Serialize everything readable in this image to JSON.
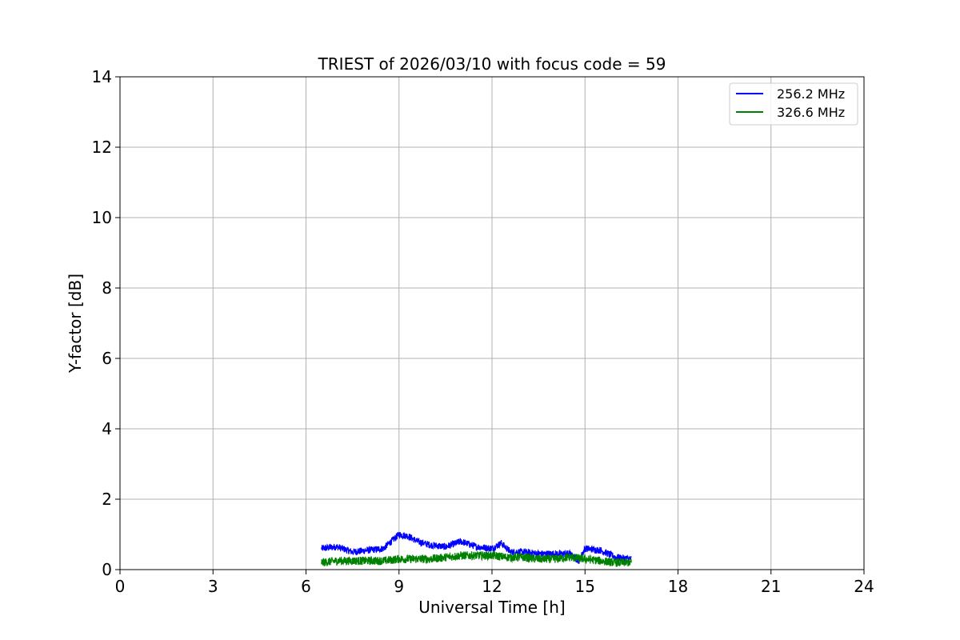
{
  "chart_data": {
    "type": "line",
    "title": "TRIEST of 2026/03/10 with focus code = 59",
    "xlabel": "Universal Time [h]",
    "ylabel": "Y-factor [dB]",
    "xlim": [
      0,
      24
    ],
    "ylim": [
      0,
      14
    ],
    "xticks": [
      0,
      3,
      6,
      9,
      12,
      15,
      18,
      21,
      24
    ],
    "yticks": [
      0,
      2,
      4,
      6,
      8,
      10,
      12,
      14
    ],
    "grid": true,
    "legend_position": "top-right",
    "series": [
      {
        "name": "256.2 MHz",
        "color": "#0000ff",
        "noise_band": 0.1,
        "x": [
          6.5,
          7.0,
          7.5,
          8.0,
          8.5,
          9.0,
          9.3,
          9.6,
          10.0,
          10.5,
          11.0,
          11.5,
          12.0,
          12.3,
          12.6,
          13.0,
          13.5,
          14.0,
          14.5,
          14.8,
          15.0,
          15.5,
          16.0,
          16.5
        ],
        "y": [
          0.6,
          0.65,
          0.5,
          0.55,
          0.6,
          1.0,
          0.95,
          0.8,
          0.7,
          0.65,
          0.8,
          0.65,
          0.6,
          0.75,
          0.5,
          0.5,
          0.45,
          0.45,
          0.45,
          0.25,
          0.6,
          0.55,
          0.35,
          0.3
        ]
      },
      {
        "name": "326.6 MHz",
        "color": "#008000",
        "noise_band": 0.12,
        "x": [
          6.5,
          7.0,
          7.5,
          8.0,
          8.5,
          9.0,
          9.5,
          10.0,
          10.5,
          11.0,
          11.5,
          12.0,
          12.5,
          13.0,
          13.5,
          14.0,
          14.5,
          15.0,
          15.5,
          16.0,
          16.5
        ],
        "y": [
          0.2,
          0.25,
          0.25,
          0.25,
          0.25,
          0.3,
          0.3,
          0.3,
          0.35,
          0.4,
          0.4,
          0.4,
          0.35,
          0.35,
          0.3,
          0.3,
          0.35,
          0.3,
          0.25,
          0.2,
          0.2
        ]
      }
    ]
  }
}
